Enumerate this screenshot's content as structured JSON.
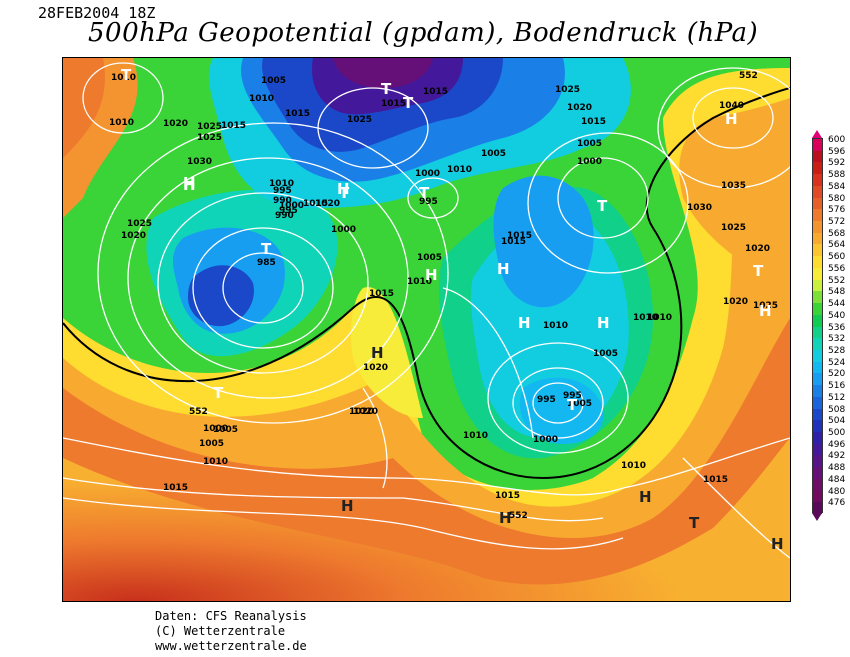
{
  "header": {
    "date": "28FEB2004 18Z",
    "title": "500hPa Geopotential (gpdam), Bodendruck (hPa)"
  },
  "map": {
    "isobar_labels": [
      "1010",
      "1005",
      "1010",
      "1015",
      "1010",
      "1015",
      "1025",
      "1030",
      "1020",
      "1025",
      "1015",
      "1025",
      "1000",
      "1015",
      "1005",
      "1010",
      "1015",
      "1025",
      "1020",
      "1015",
      "1005",
      "1000",
      "1040",
      "1035",
      "1030",
      "1025",
      "1015",
      "1000",
      "995",
      "990",
      "1020",
      "1000",
      "1005",
      "1010",
      "1015",
      "1025",
      "1020",
      "1005",
      "1010",
      "1010",
      "1005",
      "1000",
      "995",
      "1010",
      "1005",
      "1020",
      "1015",
      "1025",
      "1020",
      "1020",
      "1000",
      "1005",
      "1010",
      "1015",
      "1015",
      "1010",
      "1010",
      "1020",
      "1015",
      "985",
      "995",
      "990",
      "995",
      "1010",
      "995",
      "1020",
      "552",
      "552",
      "552"
    ],
    "pressure_centers": [
      "T",
      "T",
      "T",
      "H",
      "H",
      "T",
      "T",
      "T",
      "H",
      "T",
      "H",
      "H",
      "H",
      "T",
      "H",
      "H",
      "H",
      "T",
      "H",
      "H",
      "H",
      "T",
      "T",
      "H",
      "H"
    ]
  },
  "legend": {
    "unit": "gpdam",
    "ticks": [
      "600",
      "596",
      "592",
      "588",
      "584",
      "580",
      "576",
      "572",
      "568",
      "564",
      "560",
      "556",
      "552",
      "548",
      "544",
      "540",
      "536",
      "532",
      "528",
      "524",
      "520",
      "516",
      "512",
      "508",
      "504",
      "500",
      "496",
      "492",
      "488",
      "484",
      "480",
      "476"
    ],
    "colors": [
      "#d8005a",
      "#b8101e",
      "#c81e16",
      "#d8321e",
      "#e04a24",
      "#e6602a",
      "#ee7a2e",
      "#f49430",
      "#f8aa30",
      "#fcc430",
      "#fedc30",
      "#f8ec3a",
      "#c8f03c",
      "#7ce038",
      "#3ad438",
      "#10cc50",
      "#10d08a",
      "#10d4b8",
      "#12cce0",
      "#14b8f0",
      "#189ef0",
      "#1a80e8",
      "#1a64dc",
      "#1a48c8",
      "#2030b8",
      "#3020a8",
      "#44189a",
      "#561488",
      "#641078",
      "#6e0c68",
      "#720a5e",
      "#5a0a5a"
    ]
  },
  "credits": {
    "line1": "Daten: CFS Reanalysis",
    "line2": "(C) Wetterzentrale",
    "line3": "www.wetterzentrale.de"
  }
}
